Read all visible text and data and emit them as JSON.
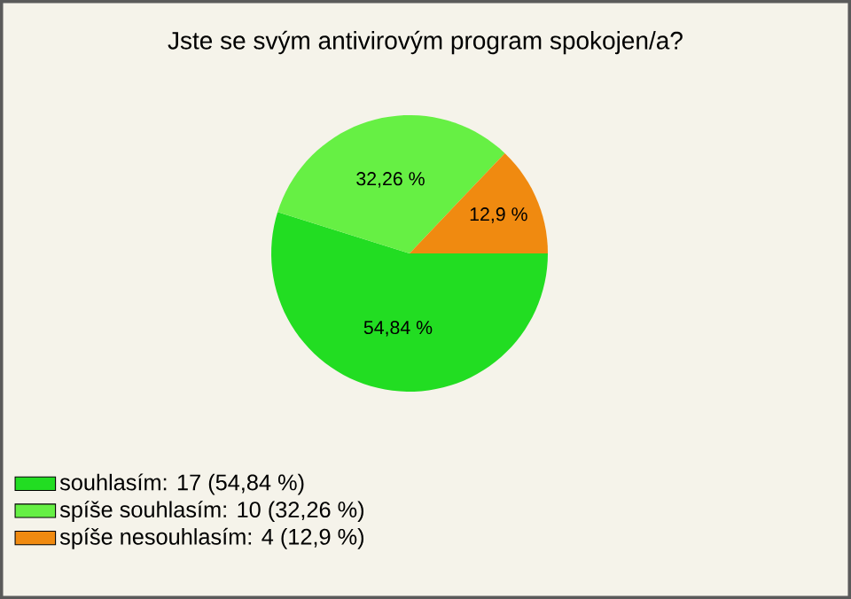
{
  "chart_data": {
    "type": "pie",
    "title": "Jste se svým antivirovým program spokojen/a?",
    "categories": [
      "souhlasím: 17 (54,84 %)",
      "spíše souhlasím: 10 (32,26 %)",
      "spíše nesouhlasím: 4 (12,9 %)"
    ],
    "values": [
      54.84,
      32.26,
      12.9
    ],
    "value_labels": [
      "54,84 %",
      "32,26 %",
      "12,9 %"
    ],
    "colors": [
      "#22dd22",
      "#66f044",
      "#f08a10"
    ],
    "legend": "bottom left"
  }
}
